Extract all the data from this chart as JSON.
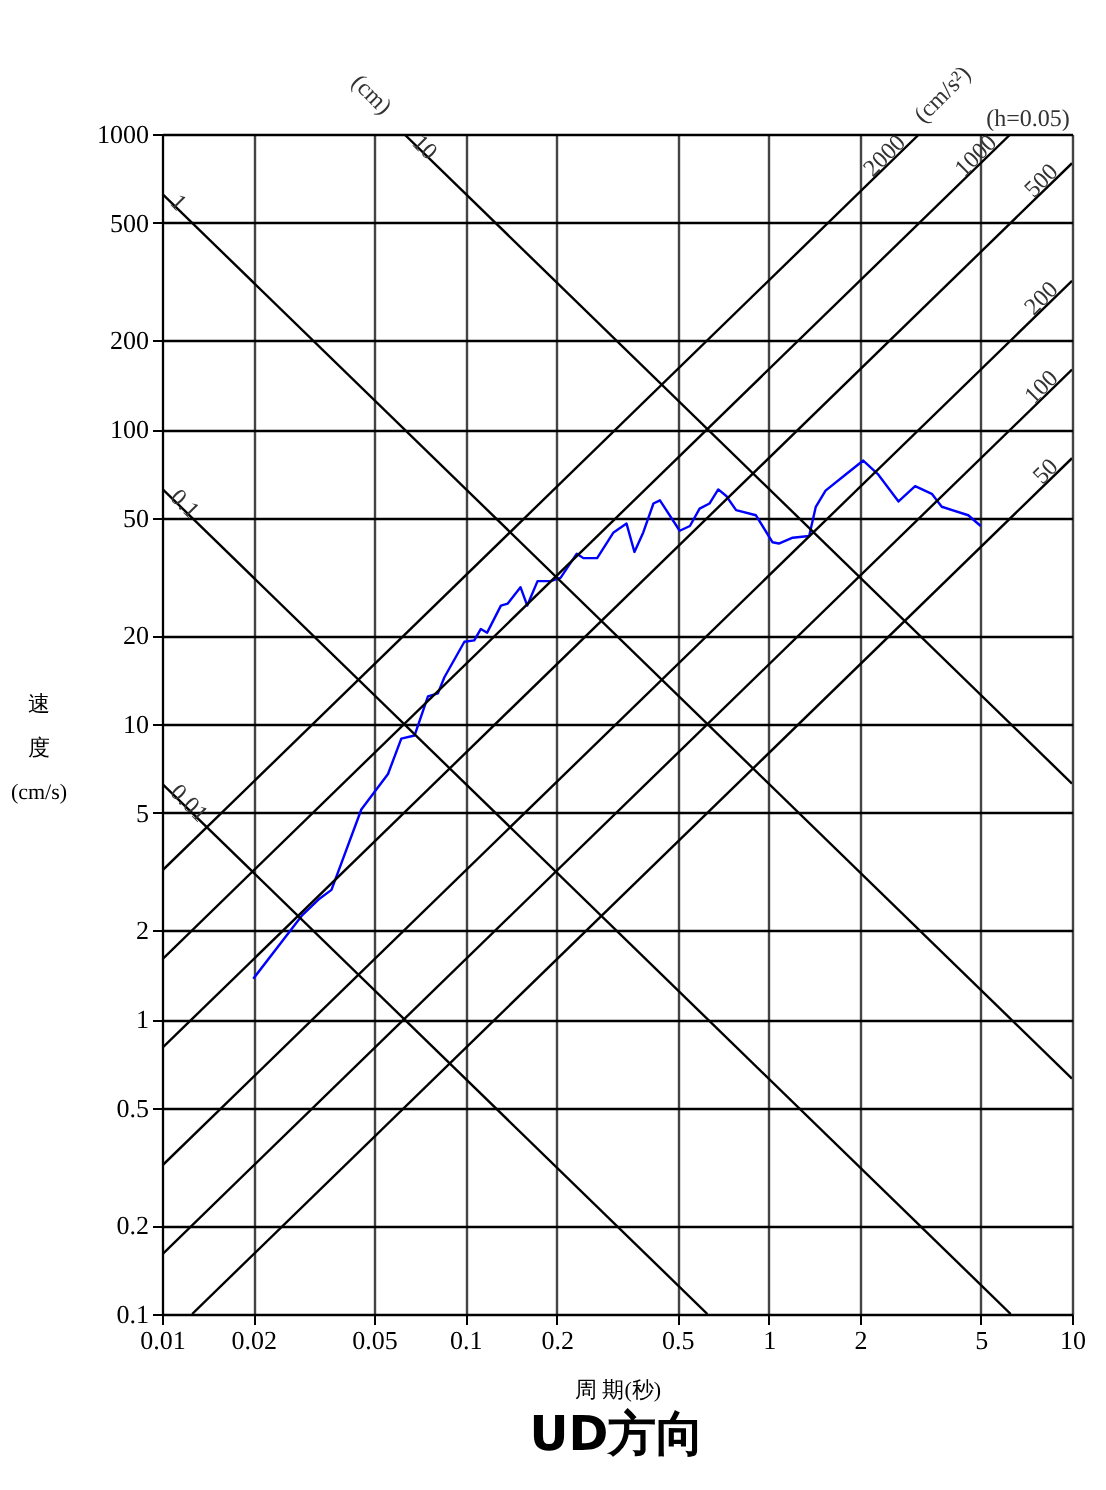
{
  "chart_data": {
    "type": "line",
    "title": "UD方向",
    "xlabel": "周 期(秒)",
    "ylabel": "速度(cm/s)",
    "log": "xy",
    "grid": true,
    "legend": false,
    "xlim": [
      0.01,
      10
    ],
    "xticks": [
      0.01,
      0.02,
      0.05,
      0.1,
      0.2,
      0.5,
      1,
      2,
      5,
      10
    ],
    "ylim": [
      0.1,
      1000
    ],
    "yticks": [
      0.1,
      0.2,
      0.5,
      1,
      2,
      5,
      10,
      20,
      50,
      100,
      200,
      500,
      1000
    ],
    "annotations": [
      "(cm)",
      "(cm/s²)",
      "(h=0.05)"
    ],
    "series": [
      {
        "color": "#0000ff",
        "x": [
          0.02,
          0.0289,
          0.0328,
          0.0362,
          0.0454,
          0.0556,
          0.0615,
          0.068,
          0.0753,
          0.0812,
          0.0853,
          0.0993,
          0.107,
          0.1125,
          0.118,
          0.131,
          0.138,
          0.152,
          0.16,
          0.173,
          0.191,
          0.206,
          0.233,
          0.245,
          0.272,
          0.308,
          0.34,
          0.361,
          0.386,
          0.417,
          0.438,
          0.509,
          0.55,
          0.592,
          0.638,
          0.682,
          0.725,
          0.781,
          0.908,
          1.03,
          1.08,
          1.2,
          1.36,
          1.43,
          1.54,
          1.79,
          2.05,
          2.3,
          2.68,
          3.04,
          3.45,
          3.72,
          4.55,
          5.0
        ],
        "values": [
          1.37,
          2.24,
          2.54,
          2.74,
          5.13,
          6.77,
          8.92,
          9.14,
          12.4,
          12.7,
          14.4,
          19.0,
          19.2,
          21.0,
          20.4,
          25.2,
          25.6,
          29.1,
          25.2,
          30.5,
          30.5,
          31.3,
          37.8,
          36.5,
          36.5,
          44.6,
          47.8,
          38.3,
          44.6,
          55.9,
          57.3,
          45.2,
          46.9,
          53.7,
          55.9,
          62.4,
          59.3,
          53.1,
          51.0,
          41.3,
          40.9,
          42.8,
          43.4,
          54.5,
          61.8,
          70.0,
          78.2,
          70.0,
          56.8,
          64.0,
          60.3,
          54.5,
          51.0,
          46.9
        ]
      },
      {
        "name": "0.01",
        "color": "#000000",
        "x": [
          0.01,
          0.628
        ],
        "values": [
          6.28,
          0.1
        ]
      },
      {
        "name": "0.1",
        "color": "#000000",
        "x": [
          0.01,
          6.28
        ],
        "values": [
          62.8,
          0.1
        ]
      },
      {
        "name": "1",
        "color": "#000000",
        "x": [
          0.01,
          10
        ],
        "values": [
          628,
          0.628
        ]
      },
      {
        "name": "10",
        "color": "#000000",
        "x": [
          0.0628,
          10
        ],
        "values": [
          1000,
          6.28
        ]
      },
      {
        "name": "50",
        "color": "#000000",
        "x": [
          0.01257,
          10
        ],
        "values": [
          0.1,
          79.6
        ]
      },
      {
        "name": "100",
        "color": "#000000",
        "x": [
          0.01,
          10
        ],
        "values": [
          0.159,
          159
        ]
      },
      {
        "name": "200",
        "color": "#000000",
        "x": [
          0.01,
          10
        ],
        "values": [
          0.318,
          318
        ]
      },
      {
        "name": "500",
        "color": "#000000",
        "x": [
          0.01,
          10
        ],
        "values": [
          0.796,
          796
        ]
      },
      {
        "name": "1000",
        "color": "#000000",
        "x": [
          0.01,
          6.28
        ],
        "values": [
          1.59,
          1000
        ]
      },
      {
        "name": "2000",
        "color": "#000000",
        "x": [
          0.01,
          3.14
        ],
        "values": [
          3.18,
          1000
        ]
      }
    ]
  }
}
